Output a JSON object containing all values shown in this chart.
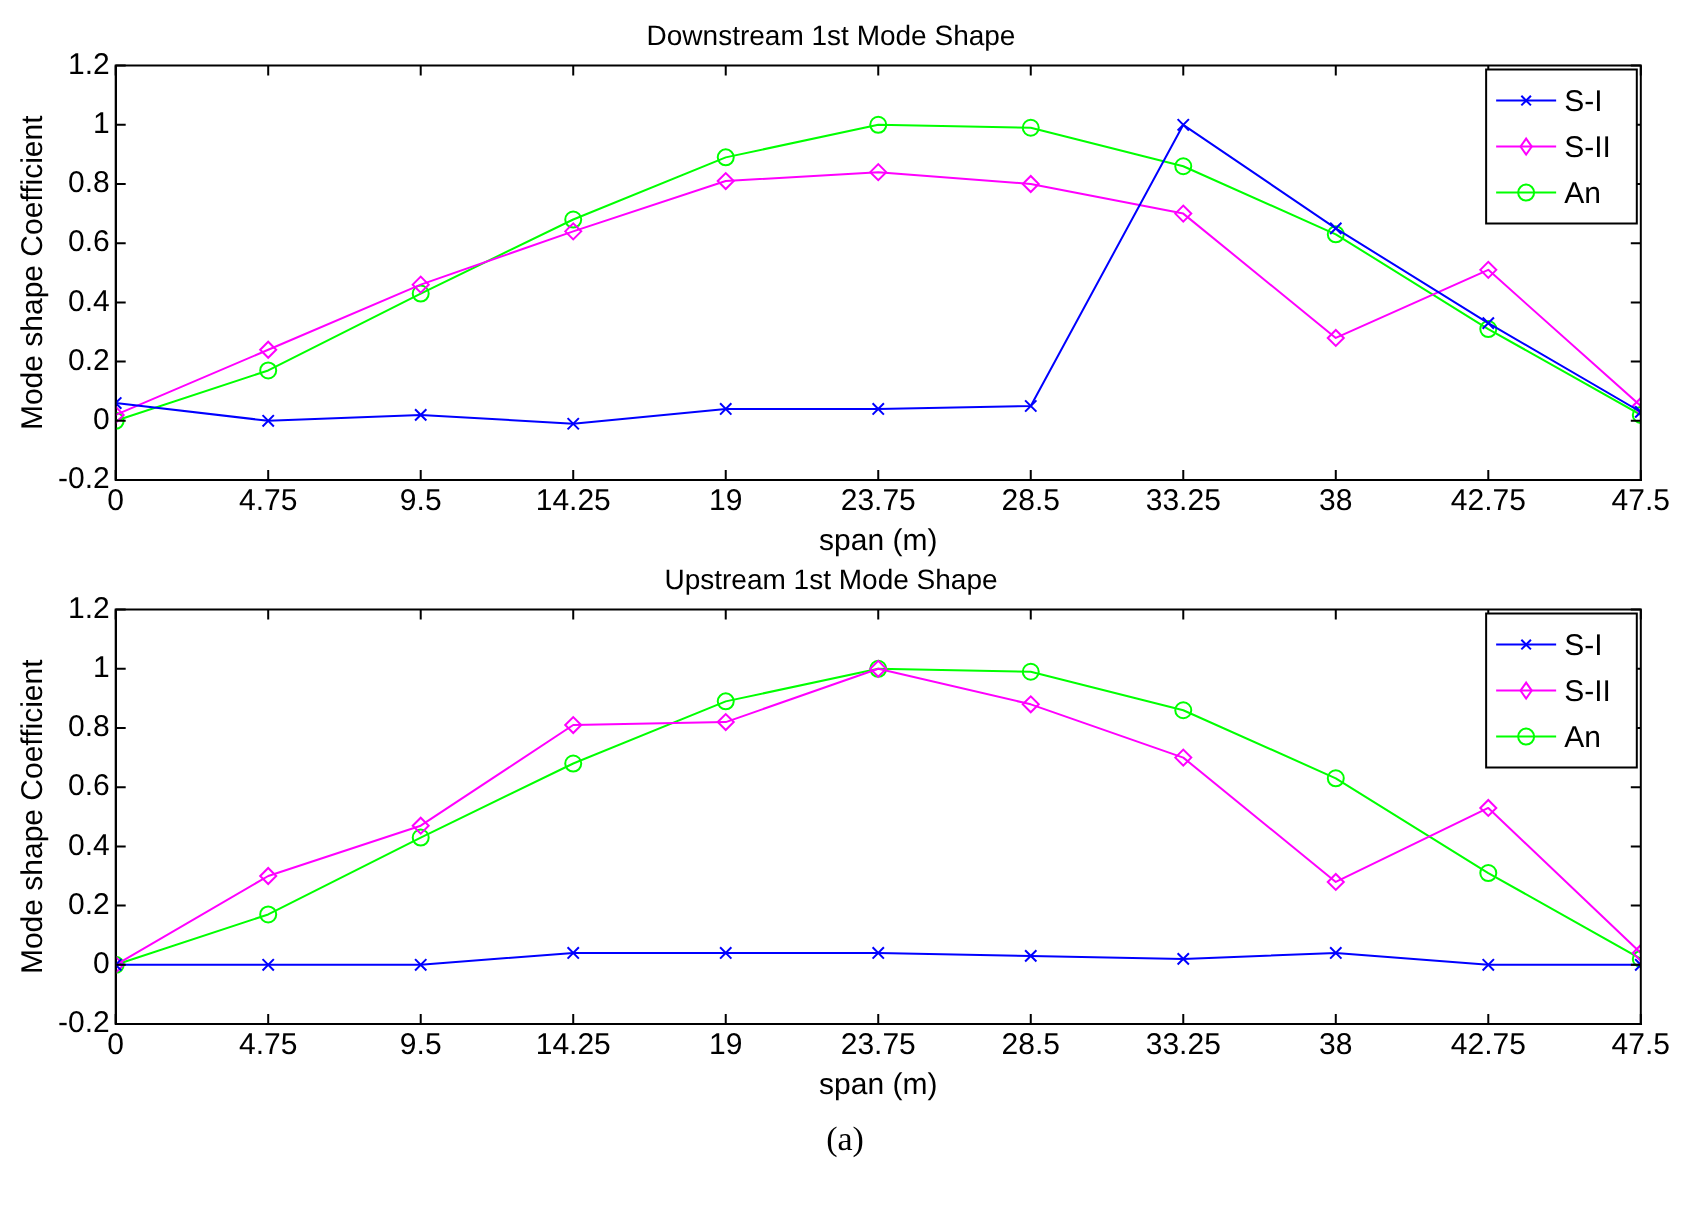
{
  "chart_data": [
    {
      "type": "line",
      "title": "Downstream 1st Mode Shape",
      "xlabel": "span (m)",
      "ylabel": "Mode shape Coefficient",
      "x": [
        0,
        4.75,
        9.5,
        14.25,
        19,
        23.75,
        28.5,
        33.25,
        38,
        42.75,
        47.5
      ],
      "xlim": [
        0,
        47.5
      ],
      "xticks": [
        0,
        4.75,
        9.5,
        14.25,
        19,
        23.75,
        28.5,
        33.25,
        38,
        42.75,
        47.5
      ],
      "ylim": [
        -0.2,
        1.2
      ],
      "yticks": [
        -0.2,
        0,
        0.2,
        0.4,
        0.6,
        0.8,
        1,
        1.2
      ],
      "grid": false,
      "legend": "top right",
      "line_style": "solid",
      "series": [
        {
          "name": "S-I",
          "color": "#0000ff",
          "marker": "cross",
          "values": [
            0.06,
            0,
            0.02,
            -0.01,
            0.04,
            0.04,
            0.05,
            1.0,
            0.65,
            0.33,
            0.03
          ]
        },
        {
          "name": "S-II",
          "color": "#ff00ff",
          "marker": "diamond",
          "values": [
            0.02,
            0.24,
            0.46,
            0.64,
            0.81,
            0.84,
            0.8,
            0.7,
            0.28,
            0.51,
            0.05
          ]
        },
        {
          "name": "An",
          "color": "#00ff00",
          "marker": "circle",
          "values": [
            0,
            0.17,
            0.43,
            0.68,
            0.89,
            1.0,
            0.99,
            0.86,
            0.63,
            0.31,
            0.02
          ]
        }
      ]
    },
    {
      "type": "line",
      "title": "Upstream 1st Mode Shape",
      "xlabel": "span (m)",
      "ylabel": "Mode shape Coefficient",
      "x": [
        0,
        4.75,
        9.5,
        14.25,
        19,
        23.75,
        28.5,
        33.25,
        38,
        42.75,
        47.5
      ],
      "xlim": [
        0,
        47.5
      ],
      "xticks": [
        0,
        4.75,
        9.5,
        14.25,
        19,
        23.75,
        28.5,
        33.25,
        38,
        42.75,
        47.5
      ],
      "ylim": [
        -0.2,
        1.2
      ],
      "yticks": [
        -0.2,
        0,
        0.2,
        0.4,
        0.6,
        0.8,
        1,
        1.2
      ],
      "grid": false,
      "legend": "top right",
      "line_style": "solid",
      "annotations": [
        "(a)"
      ],
      "series": [
        {
          "name": "S-I",
          "color": "#0000ff",
          "marker": "cross",
          "values": [
            0,
            0,
            0,
            0.04,
            0.04,
            0.04,
            0.03,
            0.02,
            0.04,
            0,
            0
          ]
        },
        {
          "name": "S-II",
          "color": "#ff00ff",
          "marker": "diamond",
          "values": [
            0,
            0.3,
            0.47,
            0.81,
            0.82,
            1.0,
            0.88,
            0.7,
            0.28,
            0.53,
            0.04
          ]
        },
        {
          "name": "An",
          "color": "#00ff00",
          "marker": "circle",
          "values": [
            0,
            0.17,
            0.43,
            0.68,
            0.89,
            1.0,
            0.99,
            0.86,
            0.63,
            0.31,
            0.02
          ]
        }
      ]
    }
  ]
}
